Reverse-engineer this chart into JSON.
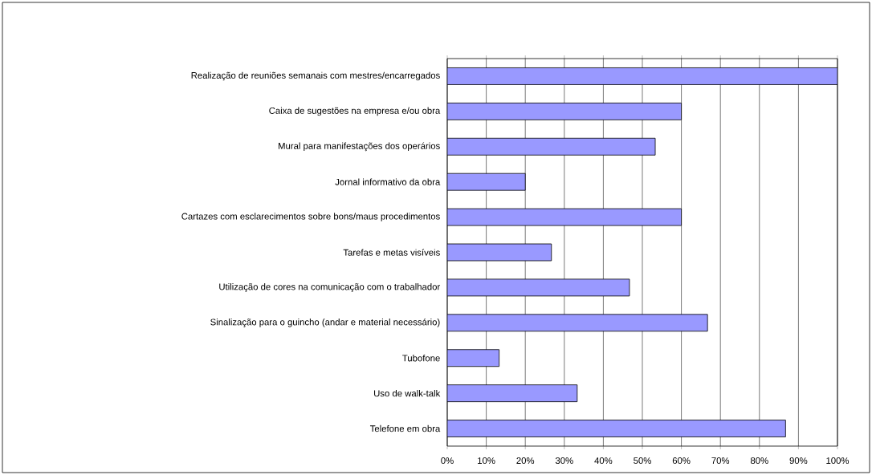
{
  "chart_data": {
    "type": "bar",
    "orientation": "horizontal",
    "categories": [
      "Realização de reuniões semanais com mestres/encarregados",
      "Caixa de sugestões na empresa e/ou obra",
      "Mural para manifestações dos operários",
      "Jornal informativo da obra",
      "Cartazes com esclarecimentos sobre bons/maus procedimentos",
      "Tarefas e metas visíveis",
      "Utilização de cores na comunicação com o trabalhador",
      "Sinalização para o guincho (andar e material necessário)",
      "Tubofone",
      "Uso de walk-talk",
      "Telefone em obra"
    ],
    "values": [
      100,
      60,
      53.3,
      20,
      60,
      26.7,
      46.7,
      66.7,
      13.3,
      33.3,
      86.7
    ],
    "color": "#9999ff",
    "xlim": [
      0,
      100
    ],
    "xticks": [
      {
        "value": 0,
        "label": "0%"
      },
      {
        "value": 10,
        "label": "10%"
      },
      {
        "value": 20,
        "label": "20%"
      },
      {
        "value": 30,
        "label": "30%"
      },
      {
        "value": 40,
        "label": "40%"
      },
      {
        "value": 50,
        "label": "50%"
      },
      {
        "value": 60,
        "label": "60%"
      },
      {
        "value": 70,
        "label": "70%"
      },
      {
        "value": 80,
        "label": "80%"
      },
      {
        "value": 90,
        "label": "90%"
      },
      {
        "value": 100,
        "label": "100%"
      }
    ],
    "grid": "x"
  }
}
